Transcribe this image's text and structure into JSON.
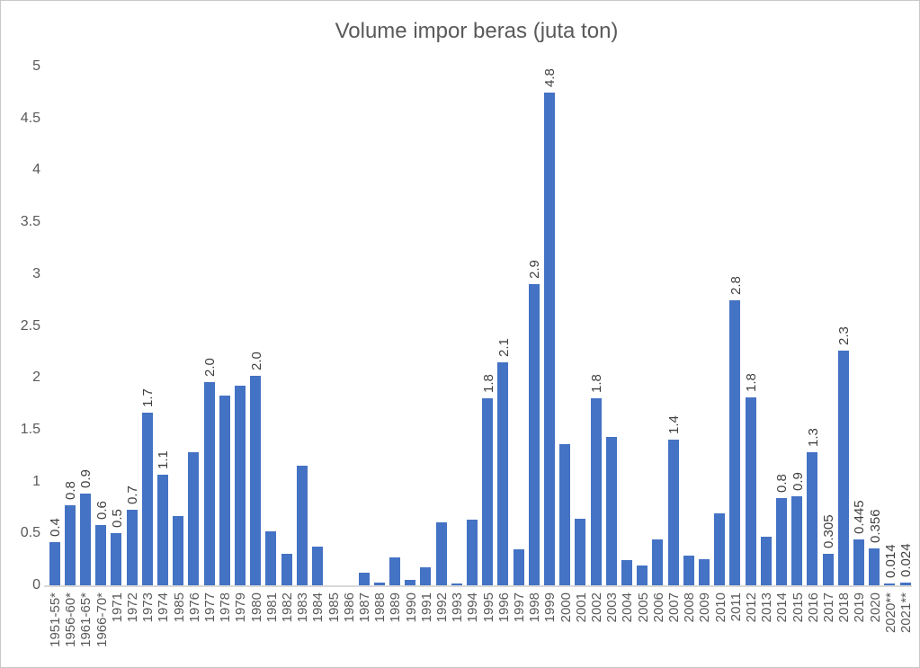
{
  "title": "Volume impor beras (juta ton)",
  "colors": {
    "bar": "#4472C4",
    "title_text": "#595959",
    "axis_text": "#595959",
    "data_label_text": "#404040",
    "axis_line": "#D9D9D9",
    "background": "#FFFFFF"
  },
  "chart_data": {
    "type": "bar",
    "title": "Volume impor beras (juta ton)",
    "xlabel": "",
    "ylabel": "",
    "ylim": [
      0,
      5
    ],
    "ytick_labels": [
      "0",
      "0.5",
      "1",
      "1.5",
      "2",
      "2.5",
      "3",
      "3.5",
      "4",
      "4.5",
      "5"
    ],
    "ytick_values": [
      0,
      0.5,
      1,
      1.5,
      2,
      2.5,
      3,
      3.5,
      4,
      4.5,
      5
    ],
    "grid": false,
    "legend": "none",
    "categories": [
      "1951-55*",
      "1956-60*",
      "1961-65*",
      "1966-70*",
      "1971",
      "1972",
      "1973",
      "1974",
      "1985",
      "1976",
      "1977",
      "1978",
      "1979",
      "1980",
      "1981",
      "1982",
      "1983",
      "1984",
      "1985",
      "1986",
      "1987",
      "1988",
      "1989",
      "1990",
      "1991",
      "1992",
      "1993",
      "1994",
      "1995",
      "1996",
      "1997",
      "1998",
      "1999",
      "2000",
      "2001",
      "2002",
      "2003",
      "2004",
      "2005",
      "2006",
      "2007",
      "2008",
      "2009",
      "2010",
      "2011",
      "2012",
      "2013",
      "2014",
      "2015",
      "2016",
      "2017",
      "2018",
      "2019",
      "2020",
      "2020**",
      "2021**"
    ],
    "values": [
      0.42,
      0.77,
      0.88,
      0.58,
      0.5,
      0.73,
      1.66,
      1.07,
      0.67,
      1.28,
      1.96,
      1.83,
      1.92,
      2.02,
      0.52,
      0.3,
      1.15,
      0.37,
      0,
      0,
      0.12,
      0.03,
      0.27,
      0.05,
      0.17,
      0.61,
      0.02,
      0.63,
      1.8,
      2.15,
      0.35,
      2.9,
      4.75,
      1.36,
      0.64,
      1.8,
      1.43,
      0.24,
      0.19,
      0.44,
      1.4,
      0.29,
      0.25,
      0.69,
      2.75,
      1.81,
      0.47,
      0.84,
      0.86,
      1.28,
      0.305,
      2.26,
      0.445,
      0.356,
      0.014,
      0.024
    ],
    "data_labels": [
      "0.4",
      "0.8",
      "0.9",
      "0.6",
      "0.5",
      "0.7",
      "1.7",
      "1.1",
      null,
      null,
      "2.0",
      null,
      null,
      "2.0",
      null,
      null,
      null,
      null,
      null,
      null,
      null,
      null,
      null,
      null,
      null,
      null,
      null,
      null,
      "1.8",
      "2.1",
      null,
      "2.9",
      "4.8",
      null,
      null,
      "1.8",
      null,
      null,
      null,
      null,
      "1.4",
      null,
      null,
      null,
      "2.8",
      "1.8",
      null,
      "0.8",
      "0.9",
      "1.3",
      "0.305",
      "2.3",
      "0.445",
      "0.356",
      "0.014",
      "0.024"
    ]
  }
}
